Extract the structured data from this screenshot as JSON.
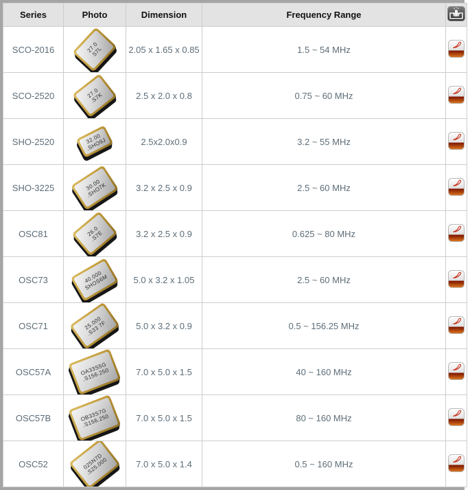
{
  "header": {
    "columns": [
      "Series",
      "Photo",
      "Dimension",
      "Frequency Range"
    ],
    "download_column_icon": "download-tray-icon"
  },
  "colors": {
    "header_bg": "#e3e3e3",
    "cell_border": "#cccccc",
    "outer_frame": "#a5a5a5",
    "body_text": "#5d6d78",
    "pdf_accent_red": "#c9311b",
    "pdf_gradient_bottom": "#d96a1a",
    "chip_gold": "#c19a3a"
  },
  "rows": [
    {
      "series": "SCO-2016",
      "photo": {
        "label_line1": "27.0",
        "label_line2": "S7L",
        "rotation": -47,
        "width": 44,
        "height": 36
      },
      "dimension": "2.05 x 1.65 x 0.85",
      "frequency_range": "1.5 ~ 54 MHz",
      "pdf_icon": "pdf-download-icon"
    },
    {
      "series": "SCO-2520",
      "photo": {
        "label_line1": "27.0",
        "label_line2": ".S7K",
        "rotation": -38,
        "width": 44,
        "height": 36
      },
      "dimension": "2.5 x 2.0 x 0.8",
      "frequency_range": "0.75 ~ 60 MHz",
      "pdf_icon": "pdf-download-icon"
    },
    {
      "series": "SHO-2520",
      "photo": {
        "label_line1": "32.00",
        "label_line2": ".SHO9J",
        "rotation": -27,
        "width": 40,
        "height": 24
      },
      "dimension": "2.5x2.0x0.9",
      "frequency_range": "3.2 ~ 55 MHz",
      "pdf_icon": "pdf-download-icon"
    },
    {
      "series": "SHO-3225",
      "photo": {
        "label_line1": "30.00",
        "label_line2": ".SHO7K",
        "rotation": -33,
        "width": 50,
        "height": 36
      },
      "dimension": "3.2 x 2.5 x 0.9",
      "frequency_range": "2.5 ~ 60 MHz",
      "pdf_icon": "pdf-download-icon"
    },
    {
      "series": "OSC81",
      "photo": {
        "label_line1": "26.0",
        "label_line2": ".S7E",
        "rotation": -40,
        "width": 46,
        "height": 36
      },
      "dimension": "3.2 x 2.5 x 0.9",
      "frequency_range": "0.625 ~ 80 MHz",
      "pdf_icon": "pdf-download-icon"
    },
    {
      "series": "OSC73",
      "photo": {
        "label_line1": "40.000",
        "label_line2": "SHOS6M",
        "rotation": -30,
        "width": 52,
        "height": 34
      },
      "dimension": "5.0 x 3.2 x 1.05",
      "frequency_range": "2.5 ~ 60 MHz",
      "pdf_icon": "pdf-download-icon"
    },
    {
      "series": "OSC71",
      "photo": {
        "label_line1": "25.000",
        "label_line2": ".S33 7F",
        "rotation": -35,
        "width": 54,
        "height": 36
      },
      "dimension": "5.0 x 3.2 x 0.9",
      "frequency_range": "0.5 ~ 156.25 MHz",
      "pdf_icon": "pdf-download-icon"
    },
    {
      "series": "OSC57A",
      "photo": {
        "label_line1": "OA33S5G",
        "label_line2": ".S156.250",
        "rotation": -21,
        "width": 58,
        "height": 42
      },
      "dimension": "7.0 x 5.0 x 1.5",
      "frequency_range": "40 ~ 160 MHz",
      "pdf_icon": "pdf-download-icon"
    },
    {
      "series": "OSC57B",
      "photo": {
        "label_line1": "OB33S7G",
        "label_line2": ".S156.250",
        "rotation": -21,
        "width": 58,
        "height": 42
      },
      "dimension": "7.0 x 5.0 x 1.5",
      "frequency_range": "80 ~ 160 MHz",
      "pdf_icon": "pdf-download-icon"
    },
    {
      "series": "OSC52",
      "photo": {
        "label_line1": "025N7D",
        "label_line2": ".S25.000",
        "rotation": -38,
        "width": 52,
        "height": 42
      },
      "dimension": "7.0 x 5.0 x 1.4",
      "frequency_range": "0.5 ~ 160 MHz",
      "pdf_icon": "pdf-download-icon"
    }
  ]
}
